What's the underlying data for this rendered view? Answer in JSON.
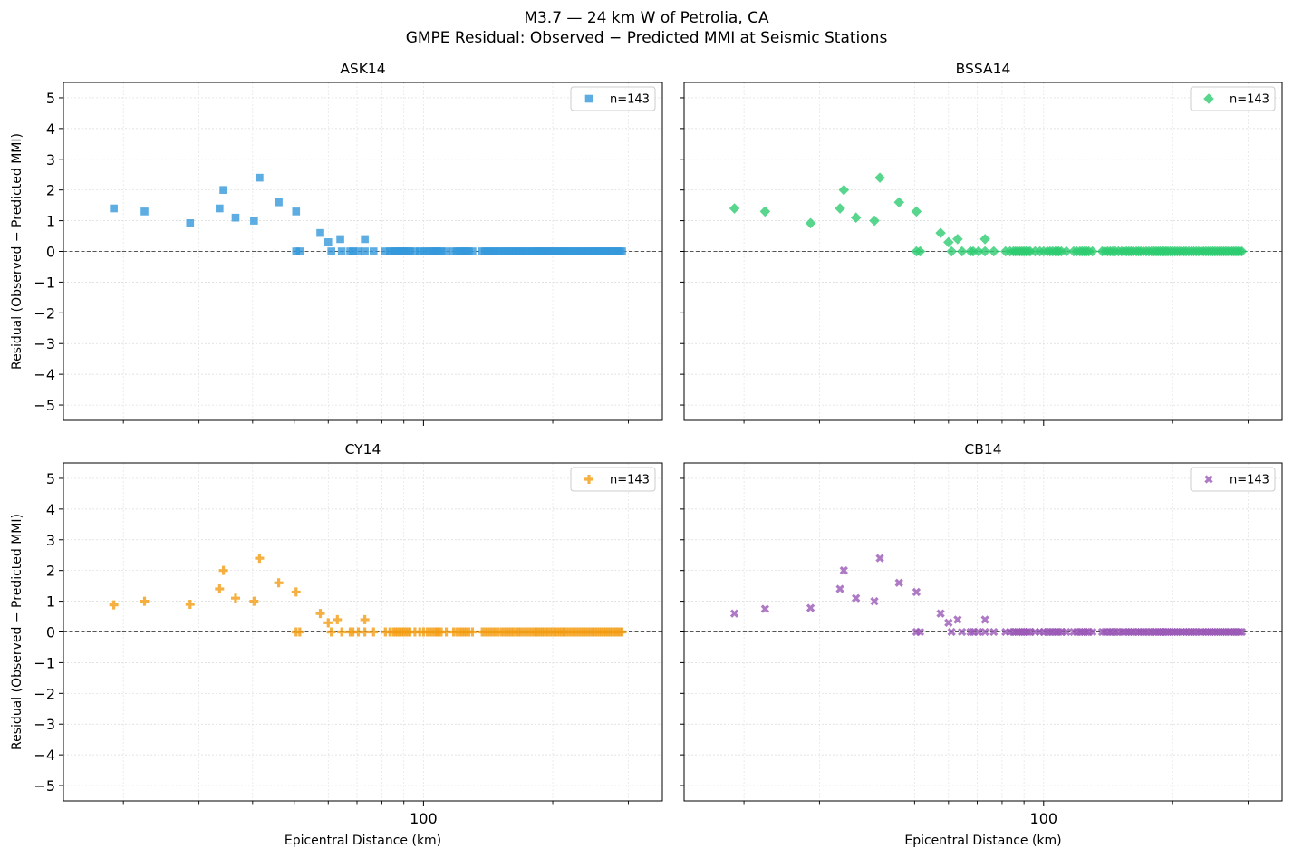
{
  "figure": {
    "suptitle_line1": "M3.7 — 24 km W of Petrolia, CA",
    "suptitle_line2": "GMPE Residual: Observed − Predicted MMI at Seismic Stations",
    "xlabel": "Epicentral Distance (km)",
    "ylabel": "Residual (Observed − Predicted MMI)"
  },
  "chart_data": [
    {
      "type": "scatter",
      "title": "ASK14",
      "xscale": "log",
      "xlim": [
        14.5,
        360
      ],
      "ylim": [
        -5.5,
        5.5
      ],
      "yticks": [
        5,
        4,
        3,
        2,
        1,
        0,
        -1,
        -2,
        -3,
        -4,
        -5
      ],
      "xtick_labels": [
        "100"
      ],
      "grid": true,
      "reference_line_y": 0,
      "legend": {
        "label": "n=143",
        "placement": "top-right"
      },
      "marker": "square",
      "color": "#3498db",
      "points_nonzero": [
        [
          19.0,
          1.4
        ],
        [
          22.4,
          1.3
        ],
        [
          28.6,
          0.92
        ],
        [
          33.5,
          1.4
        ],
        [
          34.2,
          2.0
        ],
        [
          36.5,
          1.1
        ],
        [
          40.3,
          1.0
        ],
        [
          41.5,
          2.4
        ],
        [
          46.0,
          1.6
        ],
        [
          50.5,
          1.3
        ],
        [
          57.5,
          0.6
        ],
        [
          60.0,
          0.3
        ],
        [
          64.0,
          0.4
        ],
        [
          73.0,
          0.4
        ]
      ],
      "points_zero_x": [
        50.5,
        51.5,
        61.0,
        64.5,
        67.5,
        68.5,
        70.5,
        73.0,
        76.5,
        81.5,
        83.5,
        85.0,
        86.0,
        87.0,
        88.0,
        89.0,
        90.0,
        91.0,
        92.0,
        93.0,
        95.5,
        98.0,
        100.0,
        102.0,
        103.5,
        105.0,
        106.5,
        107.5,
        108.5,
        110.0,
        113.0,
        117.5,
        119.5,
        121.5,
        123.0,
        124.5,
        126.0,
        127.5,
        130.0,
        137.0,
        139.0,
        141.0,
        143.0,
        145.0,
        147.0,
        149.5,
        152.0,
        154.0,
        156.0,
        158.0,
        160.0,
        162.0,
        164.5,
        166.5,
        168.5,
        171.0,
        173.5,
        176.0,
        178.5,
        181.0,
        183.0,
        185.0,
        187.0,
        189.0,
        191.0,
        193.0,
        195.0,
        197.5,
        200.0,
        202.5,
        205.0,
        207.5,
        210.0,
        212.5,
        215.0,
        218.0,
        221.0,
        224.0,
        227.0,
        230.0,
        233.0,
        236.0,
        239.0,
        242.0,
        245.0,
        248.0,
        251.0,
        254.0,
        257.0,
        260.0,
        263.0,
        266.0,
        269.0,
        272.0,
        275.0,
        278.0,
        281.0,
        284.0,
        287.0,
        290.0
      ]
    },
    {
      "type": "scatter",
      "title": "BSSA14",
      "xscale": "log",
      "xlim": [
        14.5,
        360
      ],
      "ylim": [
        -5.5,
        5.5
      ],
      "yticks": [
        5,
        4,
        3,
        2,
        1,
        0,
        -1,
        -2,
        -3,
        -4,
        -5
      ],
      "xtick_labels": [
        "100"
      ],
      "grid": true,
      "reference_line_y": 0,
      "legend": {
        "label": "n=143",
        "placement": "top-right"
      },
      "marker": "diamond",
      "color": "#2ecc71",
      "points_nonzero": [
        [
          19.0,
          1.4
        ],
        [
          22.4,
          1.3
        ],
        [
          28.6,
          0.92
        ],
        [
          33.5,
          1.4
        ],
        [
          34.2,
          2.0
        ],
        [
          36.5,
          1.1
        ],
        [
          40.3,
          1.0
        ],
        [
          41.5,
          2.4
        ],
        [
          46.0,
          1.6
        ],
        [
          50.5,
          1.3
        ],
        [
          57.5,
          0.6
        ],
        [
          60.0,
          0.3
        ],
        [
          63.0,
          0.4
        ],
        [
          73.0,
          0.4
        ]
      ],
      "points_zero_x": [
        50.5,
        51.5,
        61.0,
        64.5,
        67.5,
        68.5,
        70.5,
        73.0,
        76.5,
        81.5,
        83.5,
        85.0,
        86.0,
        87.0,
        88.0,
        89.0,
        90.0,
        91.0,
        92.0,
        93.0,
        95.5,
        98.0,
        100.0,
        102.0,
        103.5,
        105.0,
        106.5,
        107.5,
        108.5,
        110.0,
        113.0,
        117.5,
        119.5,
        121.5,
        123.0,
        124.5,
        126.0,
        127.5,
        130.0,
        137.0,
        139.0,
        141.0,
        143.0,
        145.0,
        147.0,
        149.5,
        152.0,
        154.0,
        156.0,
        158.0,
        160.0,
        162.0,
        164.5,
        166.5,
        168.5,
        171.0,
        173.5,
        176.0,
        178.5,
        181.0,
        183.0,
        185.0,
        187.0,
        189.0,
        191.0,
        193.0,
        195.0,
        197.5,
        200.0,
        202.5,
        205.0,
        207.5,
        210.0,
        212.5,
        215.0,
        218.0,
        221.0,
        224.0,
        227.0,
        230.0,
        233.0,
        236.0,
        239.0,
        242.0,
        245.0,
        248.0,
        251.0,
        254.0,
        257.0,
        260.0,
        263.0,
        266.0,
        269.0,
        272.0,
        275.0,
        278.0,
        281.0,
        284.0,
        287.0,
        290.0
      ]
    },
    {
      "type": "scatter",
      "title": "CY14",
      "xscale": "log",
      "xlim": [
        14.5,
        360
      ],
      "ylim": [
        -5.5,
        5.5
      ],
      "yticks": [
        5,
        4,
        3,
        2,
        1,
        0,
        -1,
        -2,
        -3,
        -4,
        -5
      ],
      "xtick_labels": [
        "100"
      ],
      "grid": true,
      "reference_line_y": 0,
      "legend": {
        "label": "n=143",
        "placement": "top-right"
      },
      "marker": "plus",
      "color": "#f39c12",
      "points_nonzero": [
        [
          19.0,
          0.88
        ],
        [
          22.4,
          1.0
        ],
        [
          28.6,
          0.9
        ],
        [
          33.5,
          1.4
        ],
        [
          34.2,
          2.0
        ],
        [
          36.5,
          1.1
        ],
        [
          40.3,
          1.0
        ],
        [
          41.5,
          2.4
        ],
        [
          46.0,
          1.6
        ],
        [
          50.5,
          1.3
        ],
        [
          57.5,
          0.6
        ],
        [
          60.0,
          0.3
        ],
        [
          63.0,
          0.4
        ],
        [
          73.0,
          0.4
        ]
      ],
      "points_zero_x": [
        50.5,
        51.5,
        61.0,
        64.5,
        67.5,
        68.5,
        70.5,
        73.0,
        76.5,
        81.5,
        83.5,
        85.0,
        86.0,
        87.0,
        88.0,
        89.0,
        90.0,
        91.0,
        92.0,
        93.0,
        95.5,
        98.0,
        100.0,
        102.0,
        103.5,
        105.0,
        106.5,
        107.5,
        108.5,
        110.0,
        113.0,
        117.5,
        119.5,
        121.5,
        123.0,
        124.5,
        126.0,
        127.5,
        130.0,
        137.0,
        139.0,
        141.0,
        143.0,
        145.0,
        147.0,
        149.5,
        152.0,
        154.0,
        156.0,
        158.0,
        160.0,
        162.0,
        164.5,
        166.5,
        168.5,
        171.0,
        173.5,
        176.0,
        178.5,
        181.0,
        183.0,
        185.0,
        187.0,
        189.0,
        191.0,
        193.0,
        195.0,
        197.5,
        200.0,
        202.5,
        205.0,
        207.5,
        210.0,
        212.5,
        215.0,
        218.0,
        221.0,
        224.0,
        227.0,
        230.0,
        233.0,
        236.0,
        239.0,
        242.0,
        245.0,
        248.0,
        251.0,
        254.0,
        257.0,
        260.0,
        263.0,
        266.0,
        269.0,
        272.0,
        275.0,
        278.0,
        281.0,
        284.0,
        287.0,
        290.0
      ]
    },
    {
      "type": "scatter",
      "title": "CB14",
      "xscale": "log",
      "xlim": [
        14.5,
        360
      ],
      "ylim": [
        -5.5,
        5.5
      ],
      "yticks": [
        5,
        4,
        3,
        2,
        1,
        0,
        -1,
        -2,
        -3,
        -4,
        -5
      ],
      "xtick_labels": [
        "100"
      ],
      "grid": true,
      "reference_line_y": 0,
      "legend": {
        "label": "n=143",
        "placement": "top-right"
      },
      "marker": "x",
      "color": "#9b59b6",
      "points_nonzero": [
        [
          19.0,
          0.6
        ],
        [
          22.4,
          0.75
        ],
        [
          28.6,
          0.78
        ],
        [
          33.5,
          1.4
        ],
        [
          34.2,
          2.0
        ],
        [
          36.5,
          1.1
        ],
        [
          40.3,
          1.0
        ],
        [
          41.5,
          2.4
        ],
        [
          46.0,
          1.6
        ],
        [
          50.5,
          1.3
        ],
        [
          57.5,
          0.6
        ],
        [
          60.0,
          0.3
        ],
        [
          63.0,
          0.4
        ],
        [
          73.0,
          0.4
        ]
      ],
      "points_zero_x": [
        50.5,
        51.5,
        61.0,
        64.5,
        67.5,
        68.5,
        70.5,
        73.0,
        76.5,
        81.5,
        83.5,
        85.0,
        86.0,
        87.0,
        88.0,
        89.0,
        90.0,
        91.0,
        92.0,
        93.0,
        95.5,
        98.0,
        100.0,
        102.0,
        103.5,
        105.0,
        106.5,
        107.5,
        108.5,
        110.0,
        113.0,
        117.5,
        119.5,
        121.5,
        123.0,
        124.5,
        126.0,
        127.5,
        130.0,
        137.0,
        139.0,
        141.0,
        143.0,
        145.0,
        147.0,
        149.5,
        152.0,
        154.0,
        156.0,
        158.0,
        160.0,
        162.0,
        164.5,
        166.5,
        168.5,
        171.0,
        173.5,
        176.0,
        178.5,
        181.0,
        183.0,
        185.0,
        187.0,
        189.0,
        191.0,
        193.0,
        195.0,
        197.5,
        200.0,
        202.5,
        205.0,
        207.5,
        210.0,
        212.5,
        215.0,
        218.0,
        221.0,
        224.0,
        227.0,
        230.0,
        233.0,
        236.0,
        239.0,
        242.0,
        245.0,
        248.0,
        251.0,
        254.0,
        257.0,
        260.0,
        263.0,
        266.0,
        269.0,
        272.0,
        275.0,
        278.0,
        281.0,
        284.0,
        287.0,
        290.0
      ]
    }
  ]
}
